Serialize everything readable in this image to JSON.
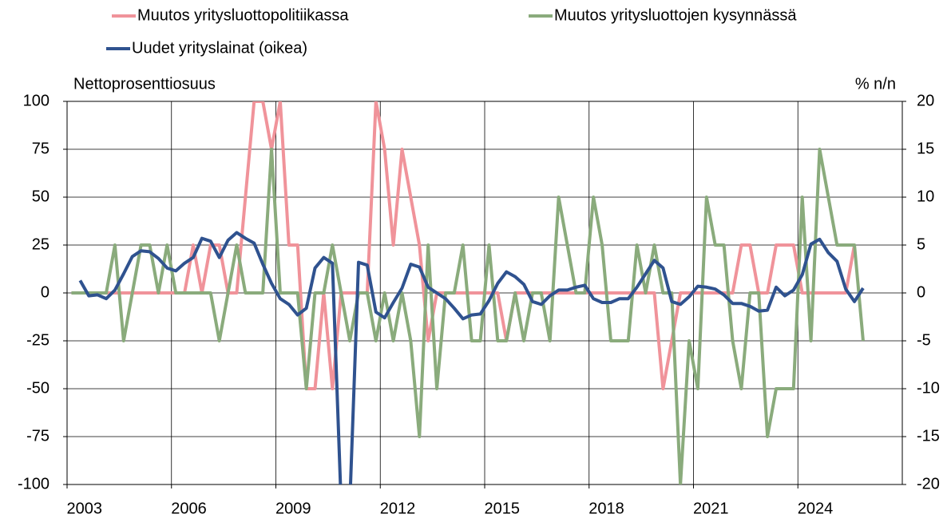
{
  "chart_data": {
    "type": "line",
    "y_label": "Nettoprosenttiosuus",
    "y2_label": "% n/n",
    "x": [
      2003.125,
      2003.375,
      2003.625,
      2003.875,
      2004.125,
      2004.375,
      2004.625,
      2004.875,
      2005.125,
      2005.375,
      2005.625,
      2005.875,
      2006.125,
      2006.375,
      2006.625,
      2006.875,
      2007.125,
      2007.375,
      2007.625,
      2007.875,
      2008.125,
      2008.375,
      2008.625,
      2008.875,
      2009.125,
      2009.375,
      2009.625,
      2009.875,
      2010.125,
      2010.375,
      2010.625,
      2010.875,
      2011.125,
      2011.375,
      2011.625,
      2011.875,
      2012.125,
      2012.375,
      2012.625,
      2012.875,
      2013.125,
      2013.375,
      2013.625,
      2013.875,
      2014.125,
      2014.375,
      2014.625,
      2014.875,
      2015.125,
      2015.375,
      2015.625,
      2015.875,
      2016.125,
      2016.375,
      2016.625,
      2016.875,
      2017.125,
      2017.375,
      2017.625,
      2017.875,
      2018.125,
      2018.375,
      2018.625,
      2018.875,
      2019.125,
      2019.375,
      2019.625,
      2019.875,
      2020.125,
      2020.375,
      2020.625,
      2020.875,
      2021.125,
      2021.375,
      2021.625,
      2021.875,
      2022.125,
      2022.375,
      2022.625,
      2022.875,
      2023.125,
      2023.375,
      2023.625,
      2023.875,
      2024.125,
      2024.375,
      2024.625,
      2024.875,
      2025.125,
      2025.375,
      2025.625,
      2025.875
    ],
    "series": [
      {
        "name": "Muutos yritysluottopolitiikassa",
        "color": "#f0939a",
        "values": [
          0,
          0,
          0,
          0,
          0,
          0,
          0,
          0,
          0,
          0,
          0,
          0,
          0,
          0,
          25,
          0,
          25,
          25,
          0,
          0,
          50,
          100,
          100,
          75,
          100,
          25,
          25,
          -50,
          -50,
          0,
          -50,
          0,
          0,
          0,
          0,
          100,
          75,
          25,
          75,
          50,
          25,
          -25,
          0,
          0,
          0,
          0,
          0,
          0,
          0,
          0,
          -25,
          0,
          0,
          0,
          0,
          0,
          0,
          0,
          0,
          0,
          0,
          0,
          0,
          0,
          0,
          0,
          0,
          0,
          -50,
          -25,
          0,
          0,
          0,
          0,
          0,
          0,
          0,
          25,
          25,
          0,
          0,
          25,
          25,
          25,
          0,
          0,
          0,
          0,
          0,
          0,
          25,
          null
        ]
      },
      {
        "name": "Muutos yritysluottojen kysynnässä",
        "color": "#8aab7c",
        "values": [
          0,
          0,
          0,
          0,
          0,
          25,
          -25,
          0,
          25,
          25,
          0,
          25,
          0,
          0,
          0,
          0,
          0,
          -25,
          0,
          25,
          0,
          0,
          0,
          75,
          0,
          0,
          0,
          -50,
          0,
          0,
          25,
          0,
          -25,
          0,
          0,
          -25,
          0,
          -25,
          0,
          -25,
          -75,
          25,
          -50,
          0,
          0,
          25,
          -25,
          -25,
          25,
          -25,
          -25,
          0,
          -25,
          0,
          0,
          -25,
          50,
          25,
          0,
          0,
          50,
          25,
          -25,
          -25,
          -25,
          25,
          0,
          25,
          0,
          0,
          -100,
          -25,
          -50,
          50,
          25,
          25,
          -25,
          -50,
          0,
          0,
          -75,
          -50,
          -50,
          -50,
          50,
          -25,
          75,
          50,
          25,
          25,
          25,
          -25
        ]
      },
      {
        "name": "Uudet yrityslainat (oikea)",
        "color": "#2f528f",
        "axis": "y2",
        "values": [
          null,
          1.3,
          -0.3,
          -0.2,
          -0.6,
          0.3,
          2,
          3.8,
          4.4,
          4.3,
          3.6,
          2.6,
          2.3,
          3.1,
          3.7,
          5.7,
          5.4,
          3.7,
          5.5,
          6.3,
          5.7,
          5.2,
          3,
          1,
          -0.6,
          -1.2,
          -2.3,
          -1.6,
          2.6,
          3.7,
          3.1,
          -22,
          -22,
          3.2,
          2.9,
          -2,
          -2.6,
          -1,
          0.5,
          3,
          2.7,
          0.6,
          0,
          -0.6,
          -1.6,
          -2.7,
          -2.3,
          -2.2,
          -0.8,
          1,
          2.2,
          1.7,
          0.9,
          -0.9,
          -1.2,
          -0.3,
          0.3,
          0.3,
          0.6,
          0.8,
          -0.6,
          -1,
          -1,
          -0.6,
          -0.6,
          0.6,
          2,
          3.4,
          2.6,
          -0.9,
          -1.2,
          -0.4,
          0.7,
          0.6,
          0.4,
          -0.2,
          -1.1,
          -1.1,
          -1.4,
          -1.9,
          -1.8,
          0.6,
          -0.3,
          0.3,
          1.9,
          5.1,
          5.6,
          4.2,
          3.3,
          0.4,
          -0.9,
          0.5
        ]
      }
    ],
    "xlim": [
      2003,
      2027
    ],
    "xticks": [
      2003,
      2006,
      2009,
      2012,
      2015,
      2018,
      2021,
      2024
    ],
    "ylim": [
      -100,
      100
    ],
    "yticks": [
      -100,
      -75,
      -50,
      -25,
      0,
      25,
      50,
      75,
      100
    ],
    "y2lim": [
      -20,
      20
    ],
    "y2ticks": [
      -20,
      -15,
      -10,
      -5,
      0,
      5,
      10,
      15,
      20
    ],
    "grid": true
  }
}
